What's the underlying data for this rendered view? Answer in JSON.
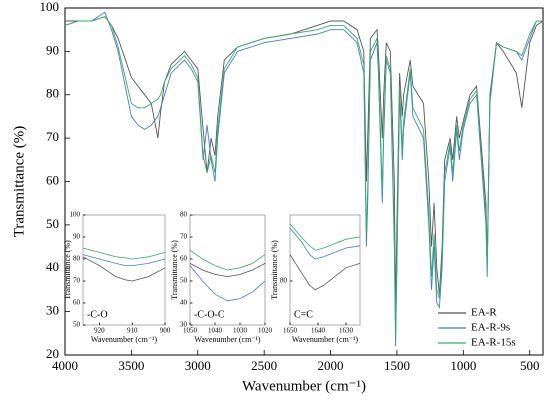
{
  "chart_data": [
    {
      "type": "line",
      "xlabel": "Wavenumber (cm⁻¹)",
      "ylabel": "Transmittance (%)",
      "xlim": [
        4000,
        400
      ],
      "ylim": [
        20,
        100
      ],
      "xticks": [
        4000,
        3500,
        3000,
        2500,
        2000,
        1500,
        1000,
        500
      ],
      "yticks": [
        20,
        30,
        40,
        50,
        60,
        70,
        80,
        90,
        100
      ],
      "legend": "lower right",
      "x": [
        4000,
        3900,
        3800,
        3700,
        3650,
        3600,
        3500,
        3450,
        3400,
        3350,
        3300,
        3280,
        3250,
        3200,
        3100,
        3050,
        3000,
        2960,
        2930,
        2900,
        2870,
        2850,
        2800,
        2700,
        2500,
        2300,
        2100,
        2000,
        1900,
        1800,
        1750,
        1730,
        1720,
        1700,
        1650,
        1640,
        1610,
        1600,
        1580,
        1550,
        1520,
        1510,
        1500,
        1480,
        1460,
        1450,
        1400,
        1380,
        1300,
        1260,
        1240,
        1220,
        1200,
        1180,
        1160,
        1140,
        1100,
        1080,
        1050,
        1030,
        1000,
        950,
        900,
        830,
        820,
        800,
        750,
        700,
        600,
        560,
        500,
        450,
        400
      ],
      "series": [
        {
          "name": "EA-R",
          "color": "#555555",
          "values": [
            97,
            97,
            97,
            98,
            96,
            93,
            84,
            82,
            80,
            78,
            70,
            76,
            83,
            87,
            90,
            88,
            86,
            72,
            62,
            70,
            66,
            75,
            88,
            91,
            93,
            94,
            96,
            97,
            97,
            95,
            90,
            60,
            70,
            93,
            95,
            90,
            70,
            80,
            92,
            90,
            60,
            30,
            50,
            85,
            75,
            80,
            88,
            82,
            78,
            60,
            45,
            55,
            40,
            34,
            45,
            65,
            70,
            65,
            75,
            70,
            74,
            80,
            82,
            55,
            42,
            80,
            92,
            90,
            85,
            77,
            92,
            96,
            97
          ]
        },
        {
          "name": "EA-R-9s",
          "color": "#3f7fd0",
          "values": [
            96,
            97,
            97,
            99,
            95,
            90,
            75,
            73,
            72,
            73,
            75,
            77,
            80,
            85,
            88,
            86,
            83,
            65,
            73,
            65,
            60,
            70,
            85,
            90,
            92,
            93,
            94,
            95,
            95,
            92,
            85,
            45,
            55,
            88,
            92,
            85,
            55,
            70,
            88,
            85,
            45,
            22,
            40,
            80,
            65,
            72,
            85,
            75,
            70,
            50,
            35,
            45,
            32,
            31,
            40,
            60,
            68,
            60,
            72,
            65,
            72,
            78,
            80,
            50,
            38,
            78,
            92,
            91,
            90,
            88,
            93,
            97,
            97
          ]
        },
        {
          "name": "EA-R-15s",
          "color": "#3aaa6a",
          "values": [
            96,
            97,
            97,
            98,
            96,
            91,
            78,
            77,
            77,
            78,
            79,
            80,
            83,
            86,
            89,
            87,
            84,
            66,
            62,
            66,
            62,
            72,
            86,
            91,
            93,
            94,
            95,
            96,
            96,
            93,
            87,
            48,
            58,
            90,
            93,
            87,
            58,
            72,
            89,
            86,
            48,
            25,
            43,
            82,
            68,
            74,
            86,
            77,
            72,
            53,
            38,
            48,
            35,
            33,
            42,
            62,
            69,
            62,
            73,
            67,
            73,
            79,
            81,
            52,
            40,
            79,
            92,
            91,
            90,
            89,
            94,
            97,
            97
          ]
        }
      ]
    },
    {
      "type": "line",
      "annotation": "-C-O",
      "xlabel": "Wavenumber (cm⁻¹)",
      "ylabel": "Transmittance (%)",
      "xlim": [
        925,
        900
      ],
      "ylim": [
        50,
        100
      ],
      "xticks": [
        920,
        910,
        900
      ],
      "yticks": [
        50,
        60,
        70,
        80,
        90,
        100
      ],
      "x": [
        925,
        920,
        915,
        912,
        910,
        905,
        900
      ],
      "series": [
        {
          "color": "#555555",
          "values": [
            81,
            77,
            72,
            70.5,
            70,
            72,
            76
          ]
        },
        {
          "color": "#3f7fd0",
          "values": [
            82,
            80,
            78,
            77,
            77,
            78,
            80
          ]
        },
        {
          "color": "#3aaa6a",
          "values": [
            85,
            83,
            81,
            80.5,
            80,
            81,
            83
          ]
        }
      ]
    },
    {
      "type": "line",
      "annotation": "-C-O-C",
      "xlabel": "Wavenumber (cm⁻¹)",
      "ylabel": "Transmittance (%)",
      "xlim": [
        1050,
        1020
      ],
      "ylim": [
        30,
        80
      ],
      "xticks": [
        1050,
        1040,
        1030,
        1020
      ],
      "yticks": [
        30,
        40,
        50,
        60,
        70,
        80
      ],
      "x": [
        1050,
        1045,
        1040,
        1035,
        1030,
        1025,
        1020
      ],
      "series": [
        {
          "color": "#555555",
          "values": [
            58,
            55,
            53,
            52,
            53,
            55,
            58
          ]
        },
        {
          "color": "#3f7fd0",
          "values": [
            57,
            50,
            44,
            41,
            42,
            45,
            50
          ]
        },
        {
          "color": "#3aaa6a",
          "values": [
            64,
            60,
            57,
            55,
            56,
            58,
            62
          ]
        }
      ]
    },
    {
      "type": "line",
      "annotation": "C=C",
      "xlabel": "Wavenumber (cm⁻¹)",
      "ylabel": "Transmittance (%)",
      "xlim": [
        1650,
        1625
      ],
      "ylim": [
        70,
        95
      ],
      "xticks": [
        1650,
        1640,
        1630
      ],
      "yticks": [
        80
      ],
      "x": [
        1650,
        1646,
        1643,
        1641,
        1638,
        1634,
        1630,
        1625
      ],
      "series": [
        {
          "color": "#555555",
          "values": [
            86,
            82,
            79,
            78,
            79,
            81,
            83,
            84
          ]
        },
        {
          "color": "#3f7fd0",
          "values": [
            92,
            89,
            86,
            85,
            85.5,
            86.5,
            87.5,
            88
          ]
        },
        {
          "color": "#3aaa6a",
          "values": [
            93,
            90,
            88,
            87,
            87.5,
            88.5,
            89.5,
            90
          ]
        }
      ]
    }
  ]
}
